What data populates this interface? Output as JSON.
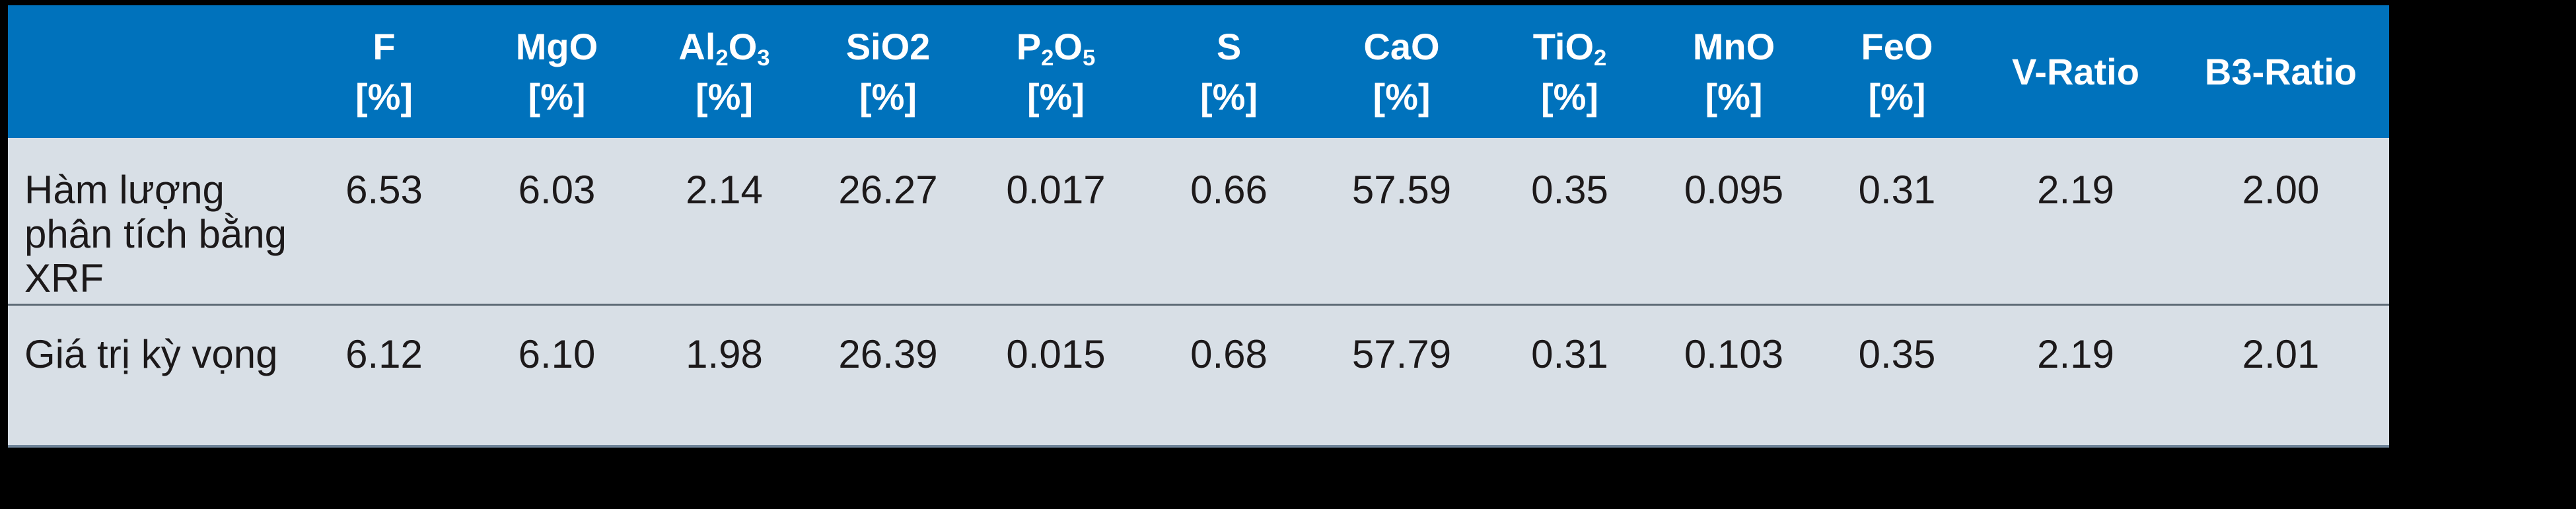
{
  "page": {
    "background_color": "#000000"
  },
  "table": {
    "header_bg_color": "#0072BC",
    "header_text_color": "#FFFFFF",
    "row_bg_color": "#D8DFE6",
    "body_text_color": "#1C191A",
    "divider_color": "#5E6B76",
    "bottom_border_color": "#70859A",
    "columns": [
      {
        "id": "row-label",
        "line1": "",
        "line2": ""
      },
      {
        "id": "F",
        "line1": "F",
        "line2": "[%]"
      },
      {
        "id": "MgO",
        "line1": "MgO",
        "line2": "[%]"
      },
      {
        "id": "Al2O3",
        "line1": "Al~2~O~3~",
        "line2": "[%]"
      },
      {
        "id": "SiO2",
        "line1": "SiO2",
        "line2": "[%]"
      },
      {
        "id": "P2O5",
        "line1": "P~2~O~5~",
        "line2": "[%]"
      },
      {
        "id": "S",
        "line1": "S",
        "line2": "[%]"
      },
      {
        "id": "CaO",
        "line1": "CaO",
        "line2": "[%]"
      },
      {
        "id": "TiO2",
        "line1": "TiO~2~",
        "line2": "[%]"
      },
      {
        "id": "MnO",
        "line1": "MnO",
        "line2": "[%]"
      },
      {
        "id": "FeO",
        "line1": "FeO",
        "line2": "[%]"
      },
      {
        "id": "V-Ratio",
        "line1": "V-Ratio",
        "line2": ""
      },
      {
        "id": "B3-Ratio",
        "line1": "B3-Ratio",
        "line2": ""
      }
    ],
    "rows": [
      {
        "label": "Hàm lượng\nphân tích bằng\nXRF",
        "values": [
          "6.53",
          "6.03",
          "2.14",
          "26.27",
          "0.017",
          "0.66",
          "57.59",
          "0.35",
          "0.095",
          "0.31",
          "2.19",
          "2.00"
        ]
      },
      {
        "label": "Giá trị kỳ vọng",
        "values": [
          "6.12",
          "6.10",
          "1.98",
          "26.39",
          "0.015",
          "0.68",
          "57.79",
          "0.31",
          "0.103",
          "0.35",
          "2.19",
          "2.01"
        ]
      }
    ]
  },
  "chart_data": {
    "type": "table",
    "title": "",
    "columns": [
      "",
      "F [%]",
      "MgO [%]",
      "Al2O3 [%]",
      "SiO2 [%]",
      "P2O5 [%]",
      "S [%]",
      "CaO [%]",
      "TiO2 [%]",
      "MnO [%]",
      "FeO [%]",
      "V-Ratio",
      "B3-Ratio"
    ],
    "rows": [
      {
        "label": "Hàm lượng phân tích bằng XRF",
        "values": [
          6.53,
          6.03,
          2.14,
          26.27,
          0.017,
          0.66,
          57.59,
          0.35,
          0.095,
          0.31,
          2.19,
          2.0
        ]
      },
      {
        "label": "Giá trị kỳ vọng",
        "values": [
          6.12,
          6.1,
          1.98,
          26.39,
          0.015,
          0.68,
          57.79,
          0.31,
          0.103,
          0.35,
          2.19,
          2.01
        ]
      }
    ]
  }
}
